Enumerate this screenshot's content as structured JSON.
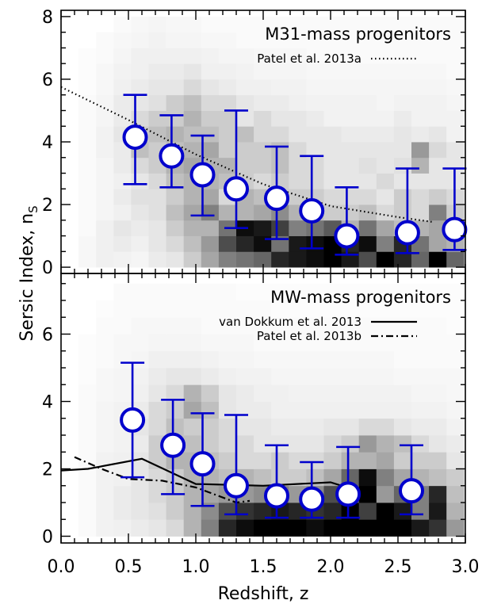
{
  "chart_data": [
    {
      "type": "scatter",
      "panel": "top",
      "title": "M31-mass progenitors",
      "xlabel": "Redshift, z",
      "ylabel_main": "Sersic Index, n",
      "ylabel_sub": "S",
      "xlim": [
        0.0,
        3.0
      ],
      "ylim": [
        -0.2,
        8.2
      ],
      "x_ticks": [
        "0.0",
        "0.5",
        "1.0",
        "1.5",
        "2.0",
        "2.5",
        "3.0"
      ],
      "y_ticks": [
        "0",
        "2",
        "4",
        "6",
        "8"
      ],
      "colors": {
        "marker_fill": "#ffffff",
        "marker_edge": "#0000cc",
        "errorbar": "#0000cc",
        "reference_line": "#000000"
      },
      "series": [
        {
          "type": "errorbar",
          "x": [
            0.55,
            0.82,
            1.05,
            1.3,
            1.6,
            1.86,
            2.12,
            2.57,
            2.92
          ],
          "y": [
            4.15,
            3.55,
            2.95,
            2.5,
            2.2,
            1.8,
            1.0,
            1.1,
            1.2
          ],
          "y_upper": [
            5.5,
            4.85,
            4.2,
            5.0,
            3.85,
            3.55,
            2.55,
            3.15,
            3.15
          ],
          "y_lower": [
            2.65,
            2.55,
            1.65,
            1.25,
            0.9,
            0.6,
            0.4,
            0.45,
            0.55
          ]
        },
        {
          "name": "Patel et al. 2013a",
          "style": "dotted",
          "x": [
            0.0,
            0.5,
            1.0,
            1.5,
            2.0,
            2.5,
            2.75
          ],
          "y": [
            5.75,
            4.7,
            3.6,
            2.65,
            1.95,
            1.6,
            1.45
          ]
        }
      ],
      "heatmap": {
        "x_bins": 23,
        "x_start": 0.0,
        "x_step": 0.13,
        "y_bins": 16,
        "y_start": 0.0,
        "y_step": 0.5,
        "cells": [
          [
            0,
            0.03,
            0.06,
            0.05,
            0.04,
            0.08,
            0.1,
            0.2,
            0.35,
            0.5,
            0.55,
            0.6,
            0.85,
            0.9,
            0.95,
            1,
            0.9,
            0.7,
            1,
            0.85,
            0.6,
            1,
            0.6
          ],
          [
            0,
            0.03,
            0.06,
            0.08,
            0.06,
            0.1,
            0.15,
            0.25,
            0.4,
            0.7,
            0.85,
            0.95,
            0.55,
            0.9,
            0.95,
            1,
            0.85,
            0.95,
            0.5,
            0.85,
            0.55,
            0.35,
            0.3
          ],
          [
            0,
            0.02,
            0.06,
            0.1,
            0.08,
            0.1,
            0.2,
            0.3,
            0.3,
            0.55,
            0.95,
            0.9,
            0.75,
            0.5,
            0.55,
            0.65,
            0.3,
            0.55,
            0.35,
            0.25,
            0.3,
            0.35,
            0.2
          ],
          [
            0,
            0.02,
            0.04,
            0.06,
            0.1,
            0.12,
            0.25,
            0.35,
            0.5,
            0.3,
            0.3,
            0.35,
            0.45,
            0.3,
            0.25,
            0.2,
            0.2,
            0.25,
            0.15,
            0.2,
            0.15,
            0.5,
            0.2
          ],
          [
            0,
            0.02,
            0.04,
            0.08,
            0.12,
            0.12,
            0.2,
            0.3,
            0.35,
            0.15,
            0.3,
            0.25,
            0.2,
            0.2,
            0.2,
            0.15,
            0.15,
            0.15,
            0.1,
            0.2,
            0.15,
            0.2,
            0.15
          ],
          [
            0,
            0.02,
            0.04,
            0.06,
            0.1,
            0.15,
            0.25,
            0.3,
            0.3,
            0.25,
            0.2,
            0.15,
            0.2,
            0.15,
            0.15,
            0.1,
            0.1,
            0.1,
            0.15,
            0.1,
            0.1,
            0.1,
            0.1
          ],
          [
            0,
            0.02,
            0.04,
            0.08,
            0.15,
            0.2,
            0.3,
            0.35,
            0.3,
            0.3,
            0.2,
            0.2,
            0.25,
            0.15,
            0.15,
            0.1,
            0.1,
            0.12,
            0.1,
            0.12,
            0.3,
            0.1,
            0.1
          ],
          [
            0,
            0.02,
            0.05,
            0.08,
            0.25,
            0.2,
            0.25,
            0.3,
            0.35,
            0.2,
            0.2,
            0.2,
            0.25,
            0.15,
            0.1,
            0.1,
            0.1,
            0.1,
            0.1,
            0.1,
            0.4,
            0.15,
            0.1
          ],
          [
            0,
            0.02,
            0.05,
            0.1,
            0.2,
            0.25,
            0.3,
            0.25,
            0.25,
            0.2,
            0.25,
            0.15,
            0.15,
            0.1,
            0.1,
            0.1,
            0.08,
            0.08,
            0.08,
            0.1,
            0.08,
            0.1,
            0.05
          ],
          [
            0,
            0.02,
            0.04,
            0.08,
            0.15,
            0.2,
            0.2,
            0.3,
            0.2,
            0.2,
            0.1,
            0.15,
            0.1,
            0.1,
            0.08,
            0.05,
            0.05,
            0.05,
            0.05,
            0.08,
            0.05,
            0.05,
            0.05
          ],
          [
            0,
            0.02,
            0.04,
            0.08,
            0.1,
            0.12,
            0.2,
            0.25,
            0.15,
            0.15,
            0.1,
            0.08,
            0.08,
            0.06,
            0.05,
            0.05,
            0.05,
            0.05,
            0.04,
            0.05,
            0.05,
            0.05,
            0.04
          ],
          [
            0,
            0.01,
            0.03,
            0.06,
            0.08,
            0.1,
            0.1,
            0.15,
            0.1,
            0.08,
            0.06,
            0.06,
            0.05,
            0.05,
            0.04,
            0.04,
            0.04,
            0.04,
            0.04,
            0.04,
            0.04,
            0.04,
            0.03
          ],
          [
            0,
            0.01,
            0.03,
            0.05,
            0.06,
            0.08,
            0.08,
            0.1,
            0.06,
            0.06,
            0.05,
            0.04,
            0.04,
            0.04,
            0.03,
            0.03,
            0.03,
            0.03,
            0.03,
            0.03,
            0.03,
            0.03,
            0.02
          ],
          [
            0,
            0.01,
            0.02,
            0.04,
            0.06,
            0.06,
            0.06,
            0.06,
            0.05,
            0.04,
            0.04,
            0.03,
            0.03,
            0.03,
            0.02,
            0.02,
            0.02,
            0.02,
            0.02,
            0.02,
            0.02,
            0.02,
            0.02
          ],
          [
            0,
            0,
            0.02,
            0.03,
            0.04,
            0.05,
            0.04,
            0.04,
            0.03,
            0.03,
            0.02,
            0.02,
            0.02,
            0.02,
            0.02,
            0.02,
            0.02,
            0.02,
            0.02,
            0.02,
            0.02,
            0.02,
            0.02
          ],
          [
            0,
            0,
            0,
            0.02,
            0.03,
            0.04,
            0.03,
            0.03,
            0.02,
            0.02,
            0.02,
            0.02,
            0.02,
            0.02,
            0.02,
            0.02,
            0.02,
            0.02,
            0.02,
            0.02,
            0.02,
            0.02,
            0.02
          ]
        ]
      }
    },
    {
      "type": "scatter",
      "panel": "bottom",
      "title": "MW-mass progenitors",
      "xlabel": "Redshift, z",
      "ylabel_main": "Sersic Index, n",
      "ylabel_sub": "S",
      "xlim": [
        0.0,
        3.0
      ],
      "ylim": [
        -0.2,
        7.8
      ],
      "x_ticks": [
        "0.0",
        "0.5",
        "1.0",
        "1.5",
        "2.0",
        "2.5",
        "3.0"
      ],
      "y_ticks": [
        "0",
        "2",
        "4",
        "6"
      ],
      "colors": {
        "marker_fill": "#ffffff",
        "marker_edge": "#0000cc",
        "errorbar": "#0000cc",
        "reference_line": "#000000"
      },
      "series": [
        {
          "type": "errorbar",
          "x": [
            0.53,
            0.83,
            1.05,
            1.3,
            1.6,
            1.86,
            2.13,
            2.6
          ],
          "y": [
            3.45,
            2.7,
            2.15,
            1.5,
            1.2,
            1.1,
            1.25,
            1.35
          ],
          "y_upper": [
            5.15,
            4.05,
            3.65,
            3.6,
            2.7,
            2.2,
            2.65,
            2.7
          ],
          "y_lower": [
            1.75,
            1.25,
            0.9,
            0.65,
            0.55,
            0.55,
            0.55,
            0.65
          ]
        },
        {
          "name": "van Dokkum et al. 2013",
          "style": "solid",
          "x": [
            0.0,
            0.2,
            0.6,
            1.0,
            1.5,
            2.0,
            2.2
          ],
          "y": [
            1.95,
            2.0,
            2.3,
            1.55,
            1.5,
            1.6,
            1.35
          ]
        },
        {
          "name": "Patel et al. 2013b",
          "style": "dashdot",
          "x": [
            0.1,
            0.3,
            0.5,
            0.75,
            1.0,
            1.3,
            1.4
          ],
          "y": [
            2.35,
            2.0,
            1.7,
            1.65,
            1.45,
            1.0,
            1.05
          ]
        }
      ],
      "heatmap": {
        "x_bins": 23,
        "x_start": 0.0,
        "x_step": 0.13,
        "y_bins": 15,
        "y_start": 0.0,
        "y_step": 0.5,
        "cells": [
          [
            0,
            0.02,
            0.05,
            0.06,
            0.08,
            0.1,
            0.15,
            0.3,
            0.5,
            0.85,
            0.95,
            1,
            1,
            1,
            0.95,
            1,
            1,
            1,
            1,
            1,
            0.9,
            0.8,
            0.4
          ],
          [
            0,
            0.02,
            0.05,
            0.08,
            0.1,
            0.12,
            0.2,
            0.3,
            0.45,
            0.7,
            0.8,
            0.85,
            0.9,
            0.85,
            0.8,
            0.85,
            1,
            0.75,
            1,
            0.9,
            0.5,
            0.9,
            0.3
          ],
          [
            0,
            0.02,
            0.05,
            0.08,
            0.1,
            0.15,
            0.2,
            0.3,
            0.35,
            0.4,
            0.4,
            0.45,
            0.5,
            0.4,
            0.45,
            0.7,
            0.55,
            1,
            0.4,
            0.6,
            0.5,
            0.85,
            0.25
          ],
          [
            0,
            0.02,
            0.05,
            0.06,
            0.1,
            0.15,
            0.2,
            0.3,
            0.3,
            0.25,
            0.3,
            0.25,
            0.2,
            0.2,
            0.25,
            0.35,
            0.6,
            0.95,
            0.5,
            0.35,
            0.3,
            0.25,
            0.2
          ],
          [
            0,
            0.02,
            0.05,
            0.06,
            0.1,
            0.2,
            0.3,
            0.3,
            0.25,
            0.2,
            0.15,
            0.15,
            0.2,
            0.15,
            0.15,
            0.2,
            0.3,
            0.3,
            0.35,
            0.2,
            0.2,
            0.2,
            0.1
          ],
          [
            0,
            0.02,
            0.04,
            0.05,
            0.08,
            0.2,
            0.25,
            0.25,
            0.2,
            0.15,
            0.15,
            0.1,
            0.1,
            0.1,
            0.1,
            0.15,
            0.2,
            0.4,
            0.3,
            0.25,
            0.15,
            0.1,
            0.08
          ],
          [
            0,
            0.02,
            0.04,
            0.05,
            0.1,
            0.15,
            0.25,
            0.2,
            0.2,
            0.15,
            0.1,
            0.1,
            0.08,
            0.08,
            0.08,
            0.1,
            0.1,
            0.15,
            0.15,
            0.1,
            0.08,
            0.08,
            0.05
          ],
          [
            0,
            0.02,
            0.04,
            0.05,
            0.08,
            0.15,
            0.2,
            0.35,
            0.25,
            0.1,
            0.08,
            0.08,
            0.06,
            0.06,
            0.06,
            0.06,
            0.06,
            0.06,
            0.06,
            0.06,
            0.05,
            0.05,
            0.04
          ],
          [
            0,
            0.02,
            0.03,
            0.04,
            0.06,
            0.1,
            0.15,
            0.3,
            0.2,
            0.1,
            0.08,
            0.06,
            0.06,
            0.05,
            0.05,
            0.05,
            0.05,
            0.05,
            0.05,
            0.05,
            0.04,
            0.04,
            0.03
          ],
          [
            0,
            0.01,
            0.03,
            0.04,
            0.05,
            0.08,
            0.1,
            0.1,
            0.08,
            0.06,
            0.05,
            0.05,
            0.04,
            0.04,
            0.04,
            0.04,
            0.04,
            0.04,
            0.04,
            0.03,
            0.03,
            0.03,
            0.03
          ],
          [
            0,
            0.01,
            0.02,
            0.03,
            0.04,
            0.06,
            0.06,
            0.06,
            0.05,
            0.04,
            0.04,
            0.03,
            0.03,
            0.03,
            0.03,
            0.03,
            0.03,
            0.03,
            0.03,
            0.02,
            0.02,
            0.02,
            0.02
          ],
          [
            0,
            0.01,
            0.02,
            0.03,
            0.03,
            0.04,
            0.04,
            0.04,
            0.03,
            0.03,
            0.03,
            0.02,
            0.02,
            0.02,
            0.02,
            0.02,
            0.02,
            0.02,
            0.02,
            0.02,
            0.02,
            0.02,
            0.02
          ],
          [
            0,
            0,
            0.02,
            0.02,
            0.03,
            0.03,
            0.03,
            0.03,
            0.02,
            0.02,
            0.02,
            0.02,
            0.02,
            0.02,
            0.02,
            0.02,
            0.02,
            0.02,
            0.02,
            0.02,
            0.02,
            0.02,
            0.01
          ],
          [
            0,
            0,
            0.01,
            0.02,
            0.02,
            0.02,
            0.02,
            0.02,
            0.02,
            0.02,
            0.02,
            0.02,
            0.01,
            0.01,
            0.01,
            0.01,
            0.01,
            0.01,
            0.01,
            0.01,
            0.01,
            0.01,
            0.01
          ],
          [
            0,
            0,
            0,
            0.02,
            0.02,
            0.02,
            0.02,
            0.02,
            0.02,
            0.02,
            0.01,
            0.01,
            0.01,
            0.01,
            0.01,
            0.01,
            0.01,
            0.01,
            0.01,
            0.01,
            0.01,
            0.01,
            0.01
          ]
        ]
      }
    }
  ]
}
